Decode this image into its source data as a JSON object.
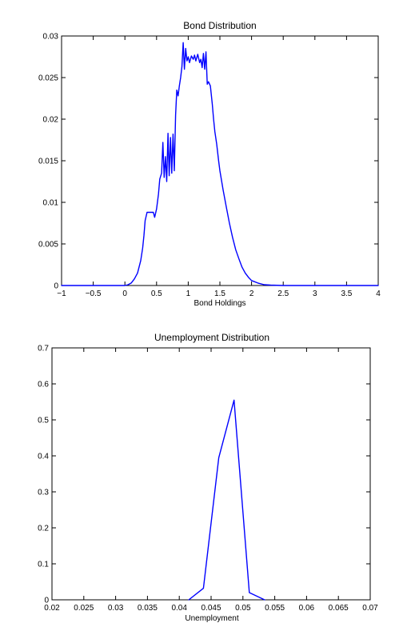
{
  "chart_data": [
    {
      "type": "line",
      "title": "Bond Distribution",
      "xlabel": "Bond Holdings",
      "ylabel": "",
      "xlim": [
        -1,
        4
      ],
      "ylim": [
        0,
        0.03
      ],
      "grid": false,
      "color": "#0000ff",
      "xticks": [
        -1,
        -0.5,
        0,
        0.5,
        1,
        1.5,
        2,
        2.5,
        3,
        3.5,
        4
      ],
      "xtick_labels": [
        "−1",
        "−0.5",
        "0",
        "0.5",
        "1",
        "1.5",
        "2",
        "2.5",
        "3",
        "3.5",
        "4"
      ],
      "yticks": [
        0,
        0.005,
        0.01,
        0.015,
        0.02,
        0.025,
        0.03
      ],
      "ytick_labels": [
        "0",
        "0.005",
        "0.01",
        "0.015",
        "0.02",
        "0.025",
        "0.03"
      ],
      "x": [
        -1,
        0,
        0.05,
        0.1,
        0.15,
        0.2,
        0.25,
        0.28,
        0.3,
        0.32,
        0.35,
        0.4,
        0.45,
        0.47,
        0.5,
        0.53,
        0.55,
        0.58,
        0.6,
        0.62,
        0.64,
        0.66,
        0.68,
        0.7,
        0.72,
        0.74,
        0.76,
        0.78,
        0.8,
        0.82,
        0.84,
        0.86,
        0.88,
        0.9,
        0.92,
        0.94,
        0.96,
        0.98,
        1,
        1.02,
        1.05,
        1.08,
        1.1,
        1.12,
        1.15,
        1.18,
        1.2,
        1.22,
        1.24,
        1.26,
        1.28,
        1.3,
        1.32,
        1.35,
        1.38,
        1.4,
        1.42,
        1.45,
        1.48,
        1.5,
        1.55,
        1.6,
        1.65,
        1.7,
        1.75,
        1.8,
        1.85,
        1.9,
        1.95,
        2,
        2.1,
        2.2,
        2.3,
        2.5,
        2.8,
        3,
        3.5,
        4
      ],
      "y": [
        0,
        0,
        0.0001,
        0.0003,
        0.0008,
        0.0015,
        0.003,
        0.0045,
        0.006,
        0.0078,
        0.0088,
        0.0088,
        0.0088,
        0.0082,
        0.0092,
        0.011,
        0.0128,
        0.0135,
        0.0172,
        0.013,
        0.0155,
        0.0125,
        0.0183,
        0.0132,
        0.0178,
        0.0135,
        0.0182,
        0.0138,
        0.0205,
        0.0235,
        0.0228,
        0.024,
        0.025,
        0.0263,
        0.0292,
        0.026,
        0.0285,
        0.027,
        0.0275,
        0.0268,
        0.0276,
        0.0272,
        0.0277,
        0.027,
        0.0278,
        0.0268,
        0.0272,
        0.0262,
        0.0279,
        0.026,
        0.0281,
        0.0242,
        0.0245,
        0.024,
        0.0218,
        0.02,
        0.0185,
        0.017,
        0.015,
        0.0138,
        0.0115,
        0.0095,
        0.0075,
        0.0058,
        0.0043,
        0.0032,
        0.0022,
        0.0015,
        0.001,
        0.0006,
        0.0003,
        0.0001,
        5e-05,
        0,
        0,
        0,
        0,
        0
      ]
    },
    {
      "type": "line",
      "title": "Unemployment Distribution",
      "xlabel": "Unemployment",
      "ylabel": "",
      "xlim": [
        0.02,
        0.07
      ],
      "ylim": [
        0,
        0.7
      ],
      "grid": false,
      "color": "#0000ff",
      "xticks": [
        0.02,
        0.025,
        0.03,
        0.035,
        0.04,
        0.045,
        0.05,
        0.055,
        0.06,
        0.065,
        0.07
      ],
      "xtick_labels": [
        "0.02",
        "0.025",
        "0.03",
        "0.035",
        "0.04",
        "0.045",
        "0.05",
        "0.055",
        "0.06",
        "0.065",
        "0.07"
      ],
      "yticks": [
        0,
        0.1,
        0.2,
        0.3,
        0.4,
        0.5,
        0.6,
        0.7
      ],
      "ytick_labels": [
        "0",
        "0.1",
        "0.2",
        "0.3",
        "0.4",
        "0.5",
        "0.6",
        "0.7"
      ],
      "x": [
        0.0415,
        0.0438,
        0.0462,
        0.0486,
        0.051,
        0.0534
      ],
      "y": [
        0,
        0.032,
        0.395,
        0.555,
        0.02,
        0
      ]
    }
  ]
}
